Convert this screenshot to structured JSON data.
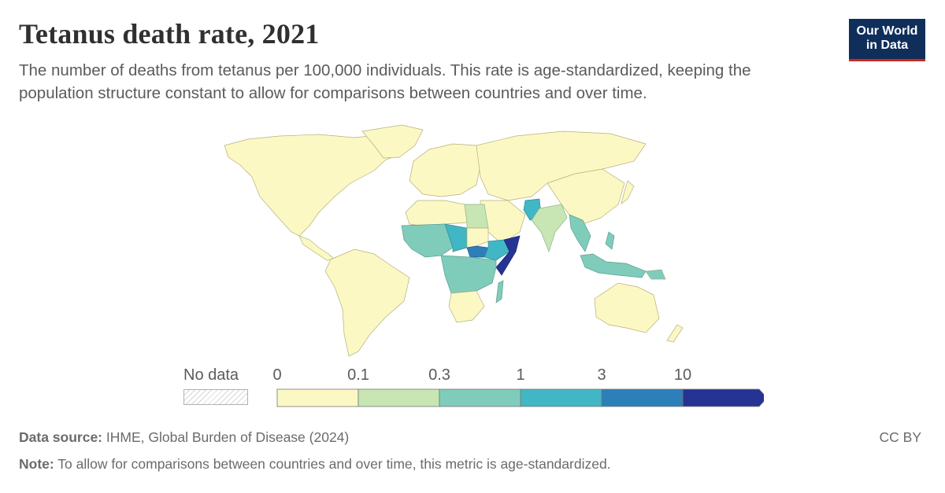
{
  "header": {
    "title": "Tetanus death rate, 2021",
    "subtitle": "The number of deaths from tetanus per 100,000 individuals. This rate is age-standardized, keeping the population structure constant to allow for comparisons between countries and over time."
  },
  "logo": {
    "line1": "Our World",
    "line2": "in Data"
  },
  "legend": {
    "no_data_label": "No data",
    "ticks": [
      "0",
      "0.1",
      "0.3",
      "1",
      "3",
      "10"
    ],
    "bins": [
      {
        "from": 0,
        "to": 0.1,
        "color": "#fbf8c4"
      },
      {
        "from": 0.1,
        "to": 0.3,
        "color": "#c7e6b4"
      },
      {
        "from": 0.3,
        "to": 1,
        "color": "#7fccbb"
      },
      {
        "from": 1,
        "to": 3,
        "color": "#41b6c4"
      },
      {
        "from": 3,
        "to": 10,
        "color": "#2c7fb8"
      },
      {
        "from": 10,
        "to": null,
        "color": "#253494"
      }
    ]
  },
  "chart_data": {
    "type": "choropleth",
    "year": 2021,
    "regions": [
      {
        "name": "North America",
        "bin": "0-0.1"
      },
      {
        "name": "South America",
        "bin": "0-0.1"
      },
      {
        "name": "Europe",
        "bin": "0-0.1"
      },
      {
        "name": "Russia and Central Asia",
        "bin": "0-0.1"
      },
      {
        "name": "China",
        "bin": "0-0.1"
      },
      {
        "name": "Australia",
        "bin": "0-0.1"
      },
      {
        "name": "North Africa",
        "bin": "0-0.1"
      },
      {
        "name": "Southern Africa",
        "bin": "0-0.1"
      },
      {
        "name": "India",
        "bin": "0.1-0.3"
      },
      {
        "name": "Egypt",
        "bin": "0.1-0.3"
      },
      {
        "name": "West Africa",
        "bin": "0.3-1"
      },
      {
        "name": "Central Africa",
        "bin": "0.3-1"
      },
      {
        "name": "Madagascar",
        "bin": "0.3-1"
      },
      {
        "name": "Indonesia",
        "bin": "0.3-1"
      },
      {
        "name": "Southeast Asia mainland",
        "bin": "0.3-1"
      },
      {
        "name": "Pakistan",
        "bin": "1-3"
      },
      {
        "name": "Chad",
        "bin": "1-3"
      },
      {
        "name": "Ethiopia",
        "bin": "1-3"
      },
      {
        "name": "South Sudan",
        "bin": "3-10"
      },
      {
        "name": "Somalia",
        "bin": ">10"
      }
    ]
  },
  "footer": {
    "source_label": "Data source:",
    "source_text": "IHME, Global Burden of Disease (2024)",
    "note_label": "Note:",
    "note_text": "To allow for comparisons between countries and over time, this metric is age-standardized.",
    "license": "CC BY"
  }
}
